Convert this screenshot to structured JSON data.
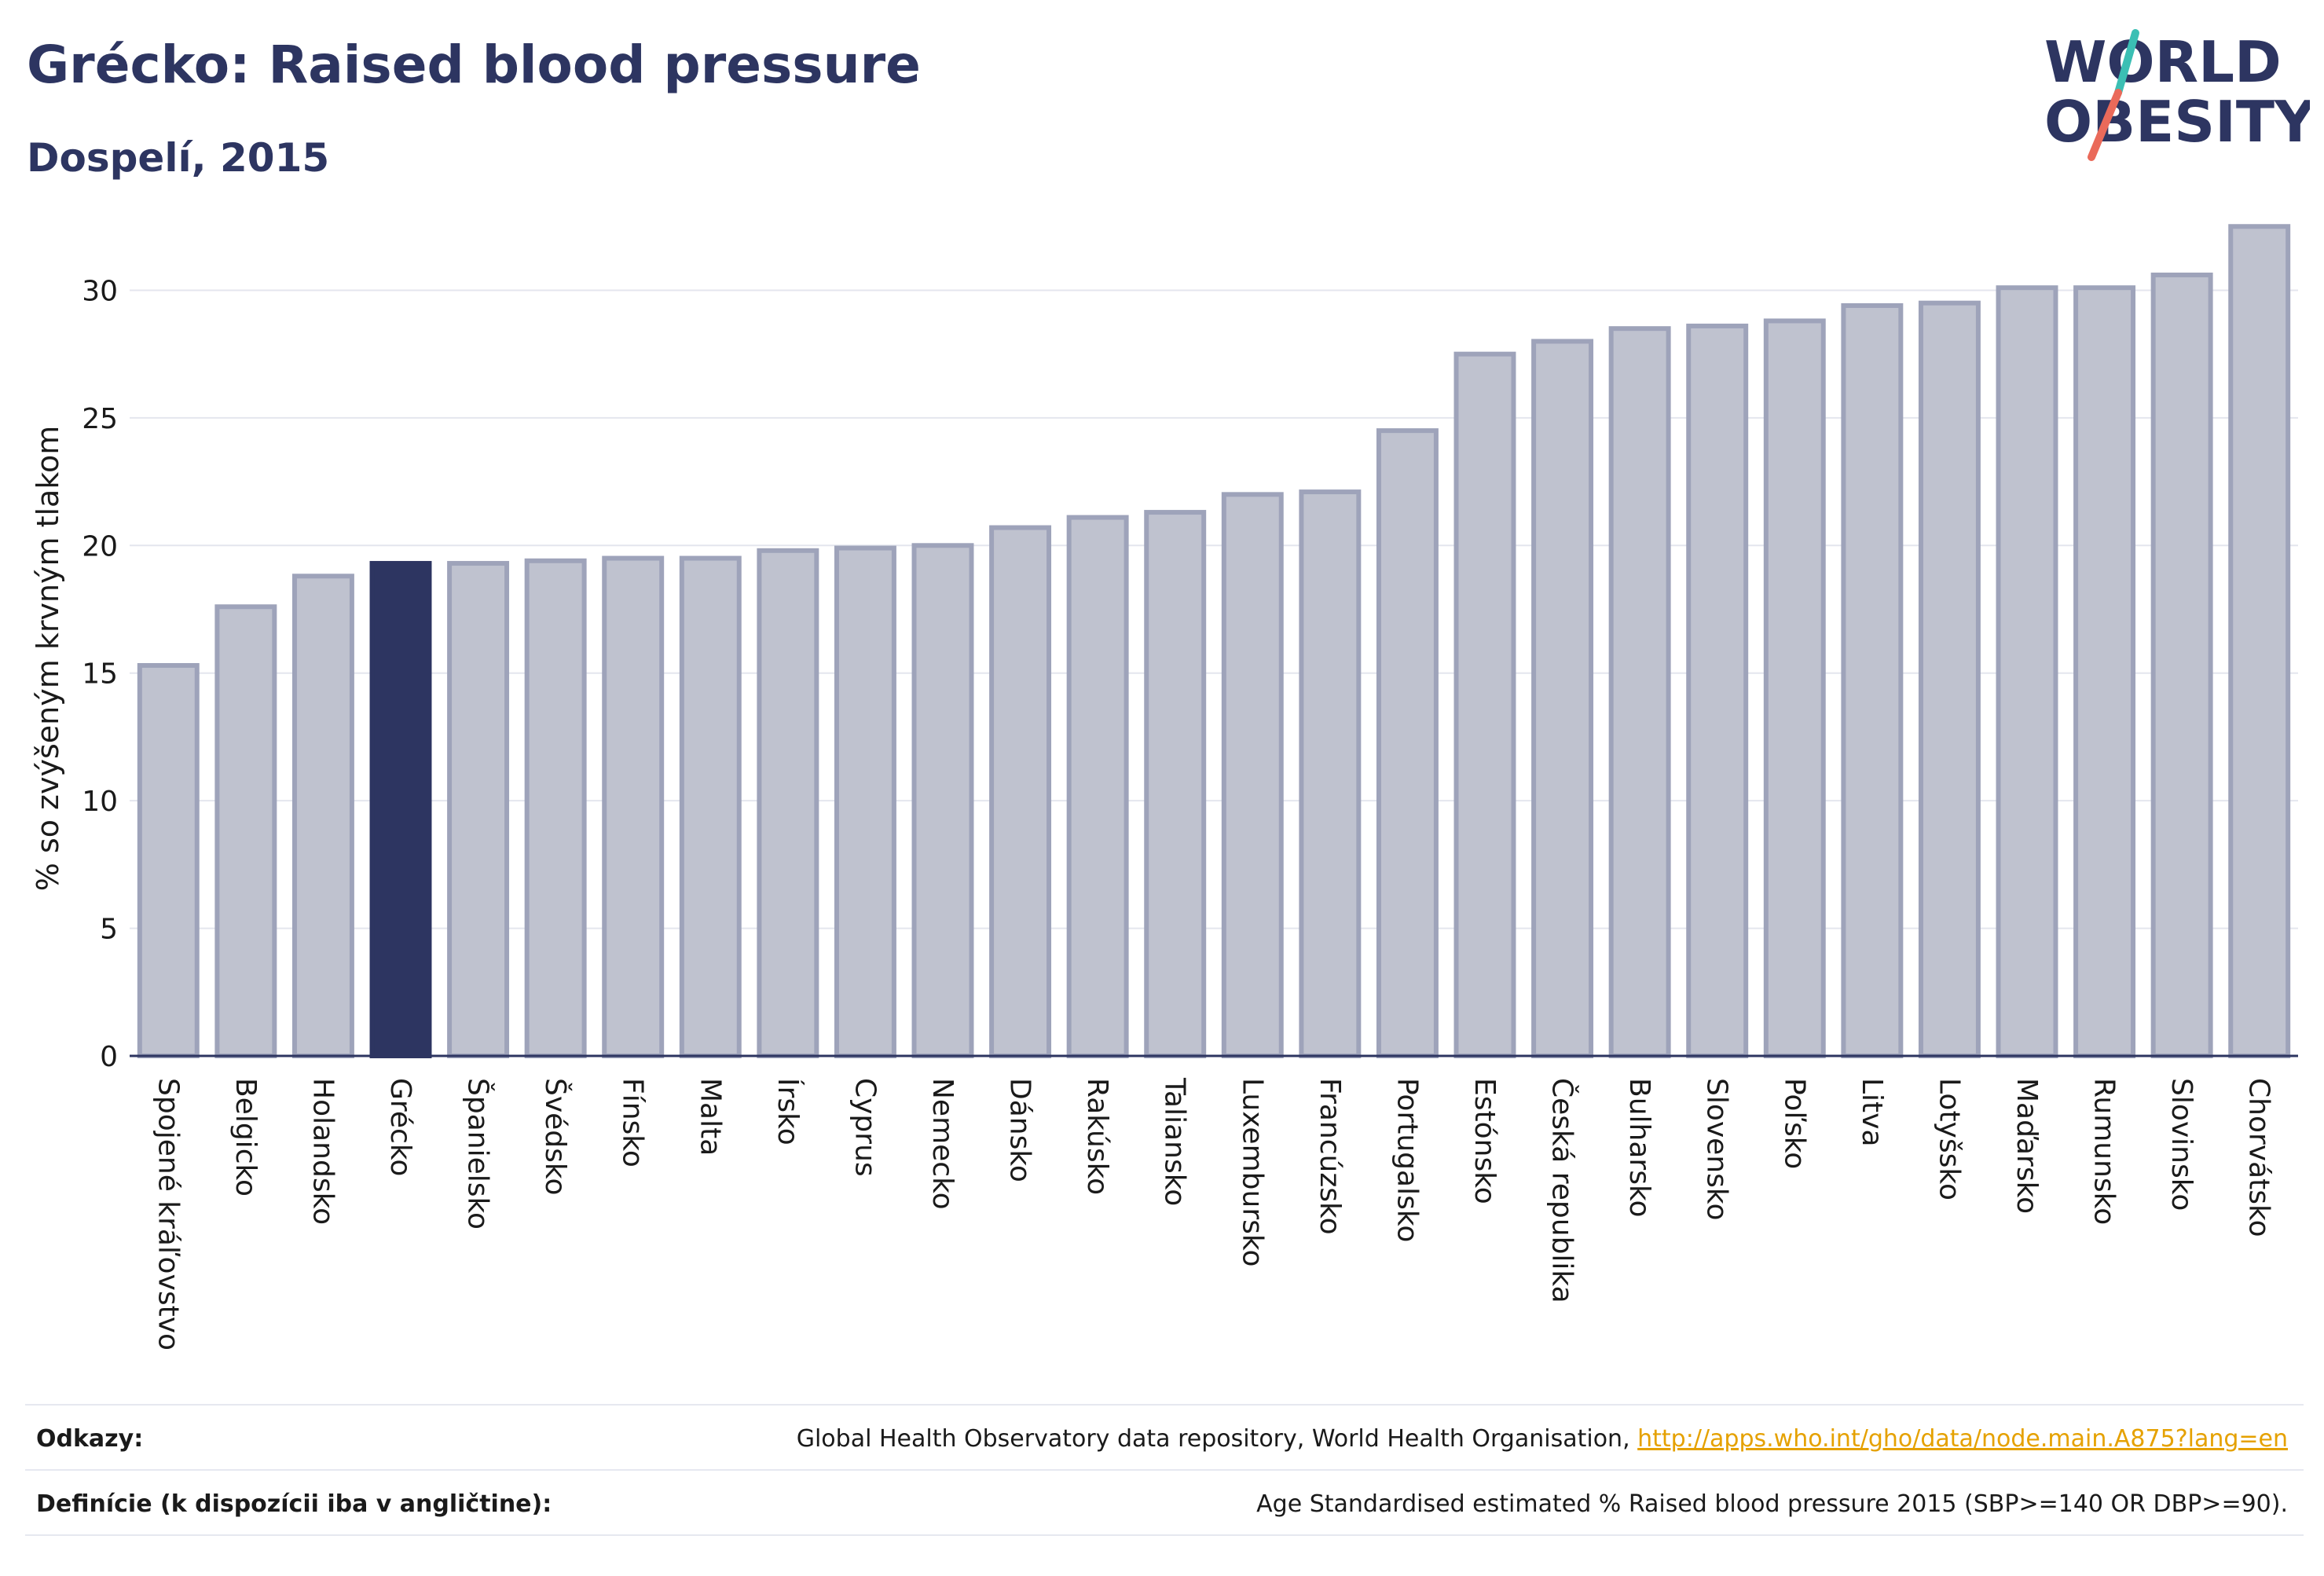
{
  "title": "Grécko: Raised blood pressure",
  "subtitle": "Dospelí, 2015",
  "logo": {
    "line1": "WORLD",
    "line2": "OBESITY"
  },
  "chart_data": {
    "type": "bar",
    "title": "Grécko: Raised blood pressure",
    "subtitle": "Dospelí, 2015",
    "xlabel": "",
    "ylabel": "% so zvýšeným krvným tlakom",
    "ylim": [
      0,
      33
    ],
    "yticks": [
      0,
      5,
      10,
      15,
      20,
      25,
      30
    ],
    "grid": true,
    "highlight": "Grécko",
    "colors": {
      "bar": "#bfc2cf",
      "bar_border": "#9ea3ba",
      "highlight": "#2d3561"
    },
    "categories": [
      "Spojené kráľovstvo",
      "Belgicko",
      "Holandsko",
      "Grécko",
      "Španielsko",
      "Švédsko",
      "Fínsko",
      "Malta",
      "Írsko",
      "Cyprus",
      "Nemecko",
      "Dánsko",
      "Rakúsko",
      "Taliansko",
      "Luxembursko",
      "Francúzsko",
      "Portugalsko",
      "Estónsko",
      "Česká republika",
      "Bulharsko",
      "Slovensko",
      "Poľsko",
      "Litva",
      "Lotyšsko",
      "Maďarsko",
      "Rumunsko",
      "Slovinsko",
      "Chorvátsko"
    ],
    "values": [
      15.3,
      17.6,
      18.8,
      19.3,
      19.3,
      19.4,
      19.5,
      19.5,
      19.8,
      19.9,
      20.0,
      20.7,
      21.1,
      21.3,
      22.0,
      22.1,
      24.5,
      27.5,
      28.0,
      28.5,
      28.6,
      28.8,
      29.4,
      29.5,
      30.1,
      30.1,
      30.6,
      32.5
    ]
  },
  "footer": {
    "sources_label": "Odkazy:",
    "sources_text": "Global Health Observatory data repository, World Health Organisation, ",
    "sources_link": "http://apps.who.int/gho/data/node.main.A875?lang=en",
    "definitions_label": "Definície (k dispozícii iba v angličtine):",
    "definitions_text": "Age Standardised estimated % Raised blood pressure 2015 (SBP>=140 OR DBP>=90)."
  }
}
